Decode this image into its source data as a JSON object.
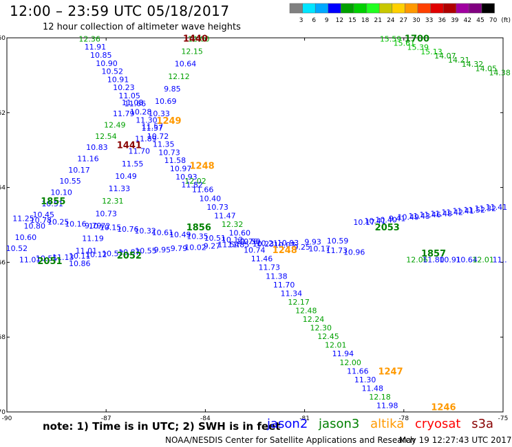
{
  "chart_data": {
    "type": "scatter",
    "title": "12:00 – 23:59 UTC 05/18/2017",
    "subtitle": "12 hour collection of altimeter wave heights",
    "xlim": [
      -90,
      -75
    ],
    "ylim": [
      -70,
      -60
    ],
    "x_ticks": [
      "-90",
      "-87",
      "-84",
      "-81",
      "-78",
      "-75"
    ],
    "y_ticks": [
      "-60",
      "-62",
      "-64",
      "-66",
      "-68",
      "-70"
    ],
    "color_scale": {
      "labels": [
        "3",
        "6",
        "9",
        "12",
        "15",
        "18",
        "21",
        "24",
        "27",
        "30",
        "33",
        "36",
        "39",
        "42",
        "45",
        "70",
        "(ft)"
      ],
      "colors": [
        "#808080",
        "#00e5ff",
        "#00a8ff",
        "#0000ff",
        "#00a000",
        "#00d000",
        "#20ff20",
        "#c8c800",
        "#ffd000",
        "#ff9900",
        "#ff4000",
        "#e00000",
        "#b00000",
        "#a000a0",
        "#800080",
        "#000000"
      ]
    },
    "series": [
      {
        "name": "jason2",
        "color": "#0000ff"
      },
      {
        "name": "jason3",
        "color": "#008000"
      },
      {
        "name": "altika",
        "color": "#ff9900"
      },
      {
        "name": "cryosat",
        "color": "#ff0000"
      },
      {
        "name": "s3a",
        "color": "#880000"
      }
    ],
    "tracks": [
      {
        "tag": "1440",
        "tag_color": "#880000",
        "tag_pos": [
          -84.3,
          -60.1
        ],
        "x0": -84.2,
        "y0": -60.1,
        "x1": -87.8,
        "y1": -66.1,
        "values": [
          "12.00",
          "12.15",
          "10.64",
          "12.12",
          "9.85",
          "10.69",
          "10.33",
          "11.57",
          "11.89",
          "11.70",
          "11.55",
          "10.49",
          "11.33",
          "12.31",
          "10.73",
          "10.72",
          "11.19",
          "11.01",
          "10.86"
        ]
      },
      {
        "tag": "1441",
        "tag_color": "#880000",
        "tag_pos": [
          -86.3,
          -62.95
        ],
        "x0": -87.5,
        "y0": -60.1,
        "x1": -84.4,
        "y1": -64.0,
        "values": [
          "12.36",
          "11.91",
          "10.85",
          "10.90",
          "10.52",
          "10.91",
          "10.23",
          "11.05",
          "11.66",
          "10.28",
          "11.30",
          "11.57",
          "10.72",
          "11.35",
          "10.73",
          "11.58",
          "10.97",
          "10.93",
          "11.82"
        ]
      },
      {
        "tag": "1855",
        "tag_color": "#008000",
        "tag_pos": [
          -88.6,
          -64.45
        ],
        "x0": -86.2,
        "y0": -61.8,
        "x1": -89.7,
        "y1": -65.7,
        "values": [
          "11.08",
          "11.79",
          "12.49",
          "12.54",
          "10.83",
          "11.16",
          "10.17",
          "10.55",
          "10.10",
          "10.51",
          "10.45",
          "10.80",
          "10.60",
          "10.52"
        ]
      },
      {
        "tag": "1248",
        "tag_color": "#ff9900",
        "tag_pos": [
          -84.1,
          -63.5
        ],
        "x0": -84.3,
        "y0": -63.9,
        "x1": -78.5,
        "y1": -69.9,
        "values": [
          "12.02",
          "11.66",
          "10.40",
          "10.73",
          "11.47",
          "12.32",
          "10.60",
          "11.76",
          "10.74",
          "11.46",
          "11.73",
          "11.38",
          "11.70",
          "11.34",
          "12.17",
          "12.48",
          "12.24",
          "12.30",
          "12.45",
          "12.01",
          "11.94",
          "12.00",
          "11.66",
          "11.30",
          "11.48",
          "12.18",
          "11.98"
        ]
      },
      {
        "tag": "1856",
        "tag_color": "#008000",
        "tag_pos": [
          -84.2,
          -65.15
        ],
        "x0": -89.5,
        "y0": -64.9,
        "x1": -79.5,
        "y1": -65.8,
        "values": [
          "11.25",
          "10.78",
          "10.25",
          "10.16",
          "9.79",
          "10.15",
          "10.76",
          "10.32",
          "10.61",
          "10.49",
          "10.35",
          "10.51",
          "10.12",
          "10.50",
          "10.21",
          "10.07",
          "9.25",
          "10.17",
          "11.73",
          "10.96"
        ]
      },
      {
        "tag": "2051",
        "tag_color": "#008000",
        "tag_pos": [
          -88.7,
          -66.05
        ],
        "x0": -89.3,
        "y0": -66.0,
        "x1": -83.3,
        "y1": -65.6,
        "values": [
          "11.01",
          "10.55",
          "11.13",
          "10.11",
          "10.12",
          "10.57",
          "10.87",
          "10.55",
          "9.95",
          "9.79",
          "10.02",
          "9.27",
          "11.54"
        ]
      },
      {
        "tag": "2052",
        "tag_color": "#008000",
        "tag_pos": [
          -86.3,
          -65.9
        ],
        "x0": -83.0,
        "y0": -65.6,
        "x1": -80.0,
        "y1": -65.5,
        "values": [
          "11.85",
          "10.23",
          "10.93",
          "9.93",
          "10.59"
        ]
      },
      {
        "tag": "2053",
        "tag_color": "#008000",
        "tag_pos": [
          -78.5,
          -65.15
        ],
        "x0": -79.2,
        "y0": -65.0,
        "x1": -75.2,
        "y1": -64.6,
        "values": [
          "10.17",
          "10.41",
          "10.40",
          "9.41",
          "10.49",
          "11.43",
          "11.46",
          "11.48",
          "11.42",
          "11.41",
          "11.52",
          "11.32",
          "11.41"
        ]
      },
      {
        "tag": "1857",
        "tag_color": "#008000",
        "tag_pos": [
          -77.1,
          -65.85
        ],
        "x0": -77.6,
        "y0": -66.0,
        "x1": -75.1,
        "y1": -66.0,
        "values": [
          "12.06",
          "11.80",
          "10.91",
          "10.64",
          "12.01",
          "11.."
        ]
      },
      {
        "tag": "1700",
        "tag_color": "#008000",
        "tag_pos": [
          -77.6,
          -60.1
        ],
        "x0": -78.4,
        "y0": -60.1,
        "x1": -75.1,
        "y1": -61.0,
        "values": [
          "15.59",
          "15.61",
          "15.39",
          "15.13",
          "14.07",
          "14.21",
          "14.32",
          "14.05",
          "14.38"
        ]
      },
      {
        "tag": "1247",
        "tag_color": "#ff9900",
        "tag_pos": [
          -78.4,
          -69.0
        ],
        "x0": -78.0,
        "y0": -69.0,
        "x1": -78.0,
        "y1": -69.0,
        "values": []
      },
      {
        "tag": "1246",
        "tag_color": "#ff9900",
        "tag_pos": [
          -76.8,
          -69.95
        ],
        "x0": -76.8,
        "y0": -69.95,
        "x1": -76.8,
        "y1": -69.95,
        "values": []
      },
      {
        "tag": "1249",
        "tag_color": "#ff9900",
        "tag_pos": [
          -85.1,
          -62.3
        ],
        "x0": -85.1,
        "y0": -62.3,
        "x1": -85.1,
        "y1": -62.3,
        "values": []
      },
      {
        "tag": "1248",
        "tag_color": "#ff9900",
        "tag_pos": [
          -81.6,
          -65.75
        ],
        "x0": -81.6,
        "y0": -65.75,
        "x1": -81.6,
        "y1": -65.75,
        "values": []
      }
    ]
  },
  "note": "note: 1) Time is in UTC; 2) SWH is in feet",
  "satellites": [
    {
      "name": "jason2",
      "color": "#0000ff"
    },
    {
      "name": "jason3",
      "color": "#008000"
    },
    {
      "name": "altika",
      "color": "#ff9900"
    },
    {
      "name": "cryosat",
      "color": "#ff0000"
    },
    {
      "name": "s3a",
      "color": "#880000"
    }
  ],
  "footer": "NOAA/NESDIS Center for Satellite Applications and Research",
  "timestamp": "May 19 12:27:43 UTC 2017"
}
